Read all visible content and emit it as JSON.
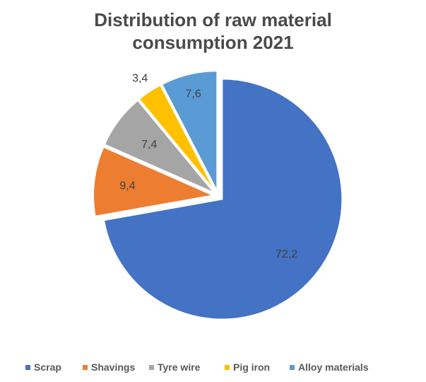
{
  "chart_data": {
    "type": "pie",
    "title": "Distribution of raw material consumption 2021",
    "title_lines": [
      "Distribution of raw material",
      "consumption 2021"
    ],
    "slices": [
      {
        "label": "Scrap",
        "value": 72.2,
        "display": "72,2",
        "color": "#4472c4"
      },
      {
        "label": "Shavings",
        "value": 9.4,
        "display": "9,4",
        "color": "#ed7d31"
      },
      {
        "label": "Tyre wire",
        "value": 7.4,
        "display": "7,4",
        "color": "#a5a5a5"
      },
      {
        "label": "Pig iron",
        "value": 3.4,
        "display": "3,4",
        "color": "#ffc000"
      },
      {
        "label": "Alloy materials",
        "value": 7.6,
        "display": "7,6",
        "color": "#5b9bd5"
      }
    ],
    "legend_position": "bottom"
  }
}
